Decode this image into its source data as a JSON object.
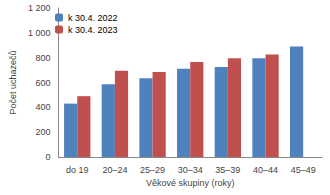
{
  "chart_data": {
    "type": "bar",
    "categories": [
      "do 19",
      "20–24",
      "25–29",
      "30–34",
      "35–39",
      "40–44",
      "45–49"
    ],
    "series": [
      {
        "name": "k 30.4. 2022",
        "color": "#4f81bd",
        "values": [
          430,
          585,
          635,
          710,
          725,
          795,
          890
        ]
      },
      {
        "name": "k 30.4. 2023",
        "color": "#c0504d",
        "values": [
          490,
          695,
          685,
          765,
          795,
          825,
          null
        ]
      }
    ],
    "x_label": "Věkové skupiny (roky)",
    "y_label": "Počet uchazečů",
    "ylim": [
      0,
      1200
    ],
    "yticks": [
      0,
      200,
      400,
      600,
      800,
      {
        "value": 1000,
        "label": "1 000"
      },
      {
        "value": 1200,
        "label": "1 200"
      }
    ],
    "grid": false,
    "legend": "upper left"
  }
}
